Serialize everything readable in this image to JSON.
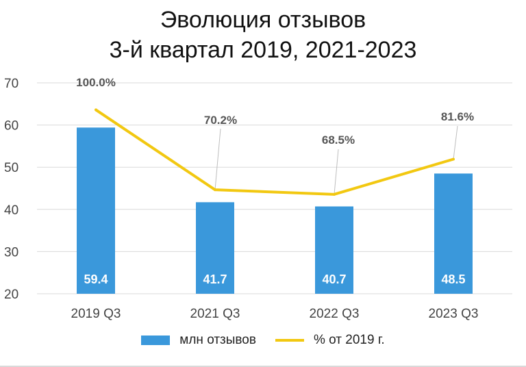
{
  "chart_data": {
    "type": "bar",
    "title_line1": "Эволюция отзывов",
    "title_line2": "3-й квартал 2019, 2021-2023",
    "categories": [
      "2019 Q3",
      "2021 Q3",
      "2022 Q3",
      "2023 Q3"
    ],
    "ylim": [
      20,
      70
    ],
    "yticks": [
      "70",
      "60",
      "50",
      "40",
      "30",
      "20"
    ],
    "grid": true,
    "legend_position": "bottom",
    "series": [
      {
        "name": "млн отзывов",
        "type": "bar",
        "color": "#3a98db",
        "values": [
          59.4,
          41.7,
          40.7,
          48.5
        ],
        "labels": [
          "59.4",
          "41.7",
          "40.7",
          "48.5"
        ]
      },
      {
        "name": "% от 2019 г.",
        "type": "line",
        "color": "#f2c811",
        "values": [
          100.0,
          70.2,
          68.5,
          81.6
        ],
        "labels": [
          "100.0%",
          "70.2%",
          "68.5%",
          "81.6%"
        ]
      }
    ]
  }
}
